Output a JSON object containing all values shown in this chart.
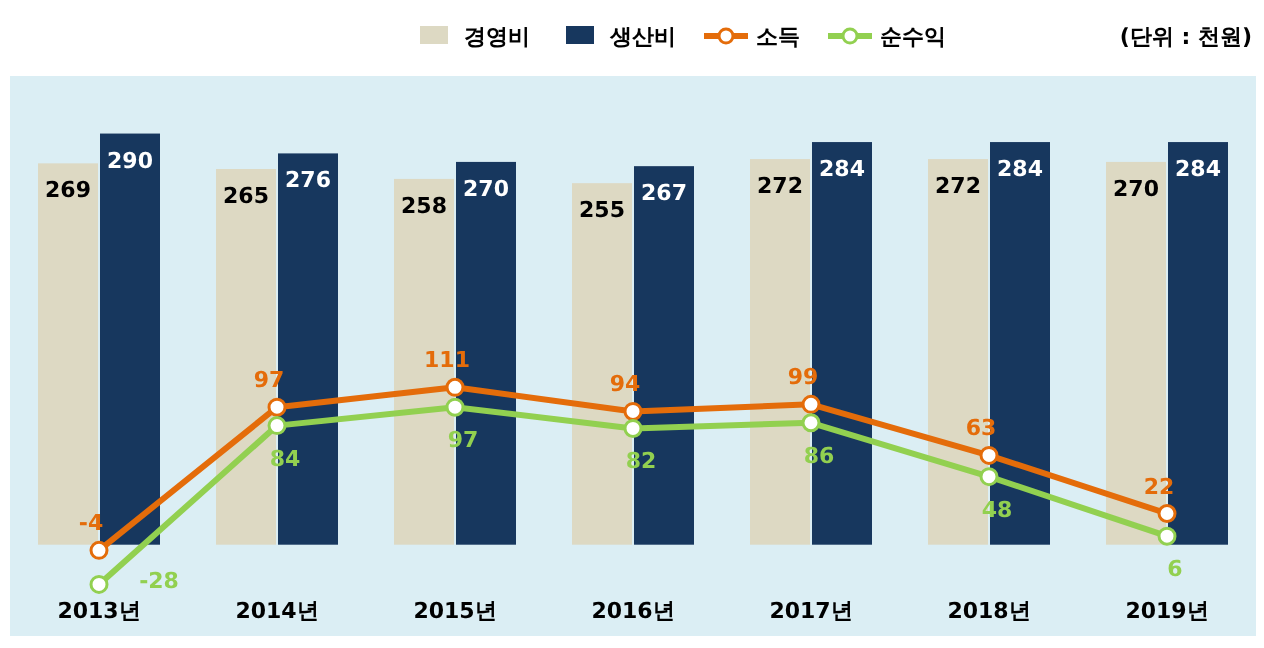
{
  "chart_data": {
    "type": "bar",
    "categories": [
      "2013년",
      "2014년",
      "2015년",
      "2016년",
      "2017년",
      "2018년",
      "2019년"
    ],
    "series": [
      {
        "name": "경영비",
        "color": "#ddd9c3",
        "values": [
          269,
          265,
          258,
          255,
          272,
          272,
          270
        ]
      },
      {
        "name": "생산비",
        "color": "#17375e",
        "values": [
          290,
          276,
          270,
          267,
          284,
          284,
          284
        ]
      },
      {
        "name": "소득",
        "type": "line",
        "color": "#e46c0a",
        "values": [
          -4,
          97,
          111,
          94,
          99,
          63,
          22
        ]
      },
      {
        "name": "순수익",
        "type": "line",
        "color": "#92d050",
        "values": [
          -28,
          84,
          97,
          82,
          86,
          48,
          6
        ]
      }
    ],
    "data_labels": true,
    "marker": "circle",
    "legend": "top",
    "annotations": [
      "(단위 : 천원)"
    ]
  }
}
